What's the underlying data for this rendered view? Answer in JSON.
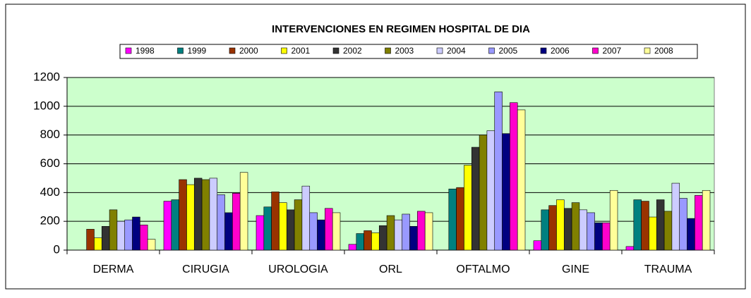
{
  "chart_data": {
    "type": "bar",
    "title": "INTERVENCIONES EN REGIMEN HOSPITAL DE DIA",
    "categories": [
      "DERMA",
      "CIRUGIA",
      "UROLOGIA",
      "ORL",
      "OFTALMO",
      "GINE",
      "TRAUMA"
    ],
    "series": [
      {
        "name": "1998",
        "color": "#ff00ff",
        "values": [
          0,
          340,
          240,
          40,
          0,
          65,
          25
        ]
      },
      {
        "name": "1999",
        "color": "#008080",
        "values": [
          0,
          350,
          300,
          115,
          425,
          280,
          350
        ]
      },
      {
        "name": "2000",
        "color": "#993300",
        "values": [
          145,
          490,
          405,
          135,
          435,
          310,
          340
        ]
      },
      {
        "name": "2001",
        "color": "#ffff00",
        "values": [
          85,
          455,
          330,
          120,
          590,
          350,
          230
        ]
      },
      {
        "name": "2002",
        "color": "#333333",
        "values": [
          165,
          500,
          280,
          170,
          715,
          290,
          350
        ]
      },
      {
        "name": "2003",
        "color": "#808000",
        "values": [
          280,
          490,
          350,
          240,
          800,
          330,
          270
        ]
      },
      {
        "name": "2004",
        "color": "#ccccff",
        "values": [
          200,
          500,
          445,
          210,
          830,
          280,
          465
        ]
      },
      {
        "name": "2005",
        "color": "#9999ff",
        "values": [
          210,
          385,
          260,
          250,
          1100,
          260,
          360
        ]
      },
      {
        "name": "2006",
        "color": "#000080",
        "values": [
          230,
          260,
          210,
          165,
          810,
          190,
          220
        ]
      },
      {
        "name": "2007",
        "color": "#ff00cc",
        "values": [
          175,
          395,
          290,
          270,
          1025,
          190,
          380
        ]
      },
      {
        "name": "2008",
        "color": "#ffff99",
        "values": [
          75,
          540,
          260,
          260,
          975,
          415,
          415
        ]
      }
    ],
    "ylim": [
      0,
      1200
    ],
    "yticks": [
      0,
      200,
      400,
      600,
      800,
      1000,
      1200
    ],
    "grid": true,
    "legend": "top"
  }
}
